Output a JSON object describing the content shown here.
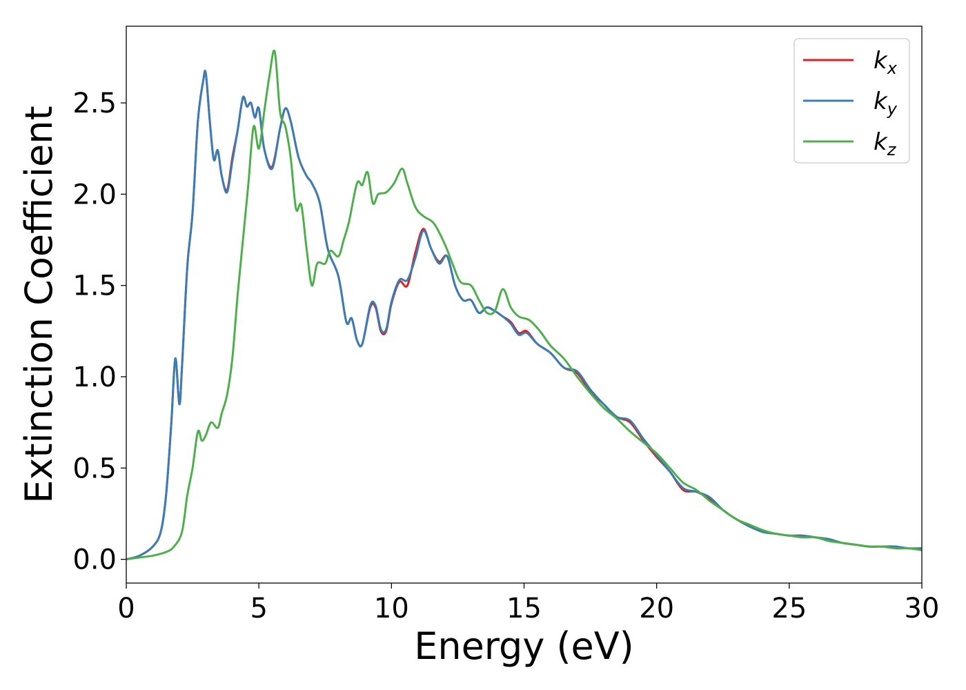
{
  "chart_data": {
    "type": "line",
    "title": "",
    "xlabel": "Energy (eV)",
    "ylabel": "Extinction Coefficient",
    "xlim": [
      0,
      30
    ],
    "ylim": [
      -0.13,
      2.92
    ],
    "xticks": [
      0,
      5,
      10,
      15,
      20,
      25,
      30
    ],
    "yticks": [
      0.0,
      0.5,
      1.0,
      1.5,
      2.0,
      2.5
    ],
    "xtick_labels": [
      "0",
      "5",
      "10",
      "15",
      "20",
      "25",
      "30"
    ],
    "ytick_labels": [
      "0.0",
      "0.5",
      "1.0",
      "1.5",
      "2.0",
      "2.5"
    ],
    "grid": false,
    "legend_position": "top-right",
    "series": [
      {
        "name": "k_x",
        "label_base": "k",
        "label_sub": "x",
        "color": "#e41a1c",
        "x": [
          0,
          0.5,
          1.0,
          1.3,
          1.5,
          1.7,
          1.85,
          2.0,
          2.1,
          2.3,
          2.5,
          2.7,
          2.9,
          3.0,
          3.15,
          3.3,
          3.45,
          3.6,
          3.8,
          4.0,
          4.2,
          4.4,
          4.55,
          4.7,
          4.85,
          5.0,
          5.2,
          5.5,
          5.8,
          6.0,
          6.2,
          6.5,
          6.8,
          7.0,
          7.3,
          7.6,
          8.0,
          8.3,
          8.5,
          8.7,
          8.9,
          9.2,
          9.4,
          9.6,
          9.8,
          10.0,
          10.3,
          10.6,
          10.9,
          11.2,
          11.5,
          11.8,
          12.1,
          12.4,
          12.7,
          13.0,
          13.3,
          13.6,
          13.9,
          14.2,
          14.5,
          14.8,
          15.1,
          15.5,
          16.0,
          16.5,
          17.0,
          17.5,
          18.0,
          18.5,
          19.0,
          19.5,
          20.0,
          20.5,
          21.0,
          21.5,
          22.0,
          22.5,
          23.0,
          23.5,
          24.0,
          24.5,
          25.0,
          25.5,
          26.0,
          26.5,
          27.0,
          27.5,
          28.0,
          28.5,
          29.0,
          29.5,
          30.0
        ],
        "y": [
          0.0,
          0.02,
          0.07,
          0.15,
          0.35,
          0.75,
          1.1,
          0.85,
          1.05,
          1.6,
          1.9,
          2.4,
          2.62,
          2.66,
          2.4,
          2.19,
          2.24,
          2.1,
          2.02,
          2.2,
          2.35,
          2.53,
          2.48,
          2.5,
          2.42,
          2.47,
          2.25,
          2.15,
          2.36,
          2.47,
          2.4,
          2.2,
          2.1,
          2.06,
          1.95,
          1.7,
          1.55,
          1.3,
          1.32,
          1.2,
          1.18,
          1.38,
          1.38,
          1.25,
          1.25,
          1.4,
          1.52,
          1.5,
          1.68,
          1.81,
          1.7,
          1.63,
          1.66,
          1.5,
          1.42,
          1.42,
          1.35,
          1.38,
          1.36,
          1.33,
          1.3,
          1.24,
          1.25,
          1.18,
          1.13,
          1.05,
          1.02,
          0.92,
          0.85,
          0.78,
          0.75,
          0.65,
          0.56,
          0.48,
          0.38,
          0.37,
          0.33,
          0.27,
          0.22,
          0.18,
          0.15,
          0.14,
          0.13,
          0.13,
          0.12,
          0.11,
          0.09,
          0.08,
          0.07,
          0.07,
          0.07,
          0.06,
          0.06
        ]
      },
      {
        "name": "k_y",
        "label_base": "k",
        "label_sub": "y",
        "color": "#377eb8",
        "x": [
          0,
          0.5,
          1.0,
          1.3,
          1.5,
          1.7,
          1.85,
          2.0,
          2.1,
          2.3,
          2.5,
          2.7,
          2.9,
          3.0,
          3.15,
          3.3,
          3.45,
          3.6,
          3.8,
          4.0,
          4.2,
          4.4,
          4.55,
          4.7,
          4.85,
          5.0,
          5.2,
          5.5,
          5.8,
          6.0,
          6.2,
          6.5,
          6.8,
          7.0,
          7.3,
          7.6,
          8.0,
          8.3,
          8.5,
          8.7,
          8.9,
          9.2,
          9.4,
          9.6,
          9.8,
          10.0,
          10.3,
          10.6,
          10.9,
          11.2,
          11.5,
          11.8,
          12.1,
          12.4,
          12.7,
          13.0,
          13.3,
          13.6,
          13.9,
          14.2,
          14.5,
          14.8,
          15.1,
          15.5,
          16.0,
          16.5,
          17.0,
          17.5,
          18.0,
          18.5,
          19.0,
          19.5,
          20.0,
          20.5,
          21.0,
          21.5,
          22.0,
          22.5,
          23.0,
          23.5,
          24.0,
          24.5,
          25.0,
          25.5,
          26.0,
          26.5,
          27.0,
          27.5,
          28.0,
          28.5,
          29.0,
          29.5,
          30.0
        ],
        "y": [
          0.0,
          0.02,
          0.07,
          0.15,
          0.35,
          0.75,
          1.1,
          0.85,
          1.05,
          1.6,
          1.9,
          2.4,
          2.62,
          2.66,
          2.4,
          2.19,
          2.24,
          2.1,
          2.01,
          2.18,
          2.35,
          2.53,
          2.48,
          2.5,
          2.42,
          2.47,
          2.25,
          2.14,
          2.36,
          2.47,
          2.4,
          2.2,
          2.1,
          2.06,
          1.95,
          1.7,
          1.55,
          1.3,
          1.32,
          1.2,
          1.18,
          1.39,
          1.39,
          1.26,
          1.26,
          1.41,
          1.53,
          1.53,
          1.65,
          1.8,
          1.7,
          1.62,
          1.66,
          1.5,
          1.42,
          1.42,
          1.35,
          1.38,
          1.36,
          1.33,
          1.29,
          1.23,
          1.24,
          1.18,
          1.13,
          1.05,
          1.03,
          0.93,
          0.85,
          0.78,
          0.76,
          0.66,
          0.57,
          0.48,
          0.39,
          0.37,
          0.34,
          0.27,
          0.22,
          0.18,
          0.15,
          0.14,
          0.13,
          0.13,
          0.12,
          0.11,
          0.09,
          0.08,
          0.07,
          0.07,
          0.07,
          0.06,
          0.06
        ]
      },
      {
        "name": "k_z",
        "label_base": "k",
        "label_sub": "z",
        "color": "#4daf4a",
        "x": [
          0,
          0.5,
          1.0,
          1.5,
          1.8,
          2.1,
          2.3,
          2.5,
          2.7,
          2.85,
          3.0,
          3.2,
          3.45,
          3.6,
          3.8,
          4.0,
          4.2,
          4.4,
          4.6,
          4.8,
          5.0,
          5.2,
          5.4,
          5.6,
          5.8,
          6.0,
          6.2,
          6.4,
          6.6,
          6.8,
          7.0,
          7.2,
          7.5,
          7.7,
          8.0,
          8.2,
          8.4,
          8.7,
          8.9,
          9.1,
          9.3,
          9.5,
          9.8,
          10.1,
          10.4,
          10.6,
          10.9,
          11.2,
          11.6,
          12.0,
          12.3,
          12.6,
          13.0,
          13.3,
          13.6,
          13.9,
          14.2,
          14.5,
          14.8,
          15.2,
          15.6,
          16.0,
          16.5,
          17.0,
          17.5,
          18.0,
          18.5,
          19.0,
          19.5,
          20.0,
          20.5,
          21.0,
          21.5,
          22.0,
          22.5,
          23.0,
          23.5,
          24.0,
          24.5,
          25.0,
          25.5,
          26.0,
          26.5,
          27.0,
          27.5,
          28.0,
          28.5,
          29.0,
          29.5,
          30.0
        ],
        "y": [
          0.0,
          0.01,
          0.02,
          0.04,
          0.07,
          0.15,
          0.35,
          0.5,
          0.7,
          0.65,
          0.68,
          0.75,
          0.72,
          0.8,
          0.9,
          1.1,
          1.45,
          1.75,
          2.05,
          2.37,
          2.25,
          2.45,
          2.65,
          2.78,
          2.45,
          2.37,
          2.2,
          1.92,
          1.94,
          1.7,
          1.5,
          1.62,
          1.62,
          1.69,
          1.66,
          1.75,
          1.85,
          2.06,
          2.05,
          2.12,
          1.95,
          2.0,
          2.01,
          2.06,
          2.14,
          2.06,
          1.93,
          1.88,
          1.84,
          1.73,
          1.62,
          1.52,
          1.5,
          1.42,
          1.35,
          1.36,
          1.48,
          1.38,
          1.33,
          1.31,
          1.25,
          1.17,
          1.1,
          1.0,
          0.91,
          0.83,
          0.77,
          0.7,
          0.64,
          0.58,
          0.5,
          0.42,
          0.38,
          0.32,
          0.27,
          0.22,
          0.19,
          0.16,
          0.14,
          0.13,
          0.12,
          0.12,
          0.1,
          0.09,
          0.08,
          0.07,
          0.07,
          0.06,
          0.06,
          0.05
        ]
      }
    ]
  }
}
